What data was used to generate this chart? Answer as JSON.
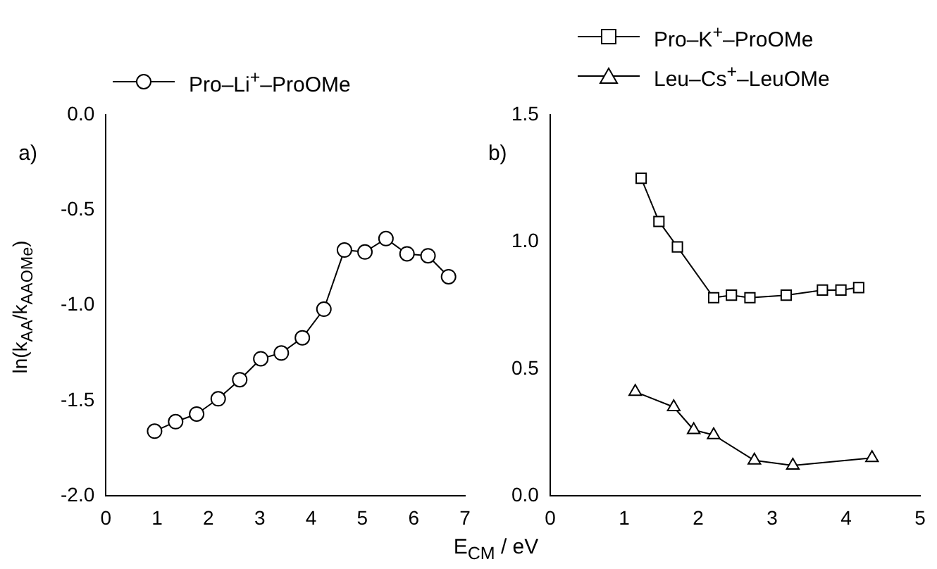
{
  "chart_data": [
    {
      "type": "line",
      "ylabel": "ln(k$_{AA}$/k$_{AAOMe}$)",
      "xlabel": "E$_{CM}$  /  eV",
      "annotations": [
        "a)"
      ],
      "xlim": [
        0,
        7
      ],
      "xticks": [
        0,
        1,
        2,
        3,
        4,
        5,
        6,
        7
      ],
      "ylim": [
        -2,
        0
      ],
      "yticks": [
        {
          "value": -2,
          "label": "-2.0"
        },
        {
          "value": -1.5,
          "label": "-1.5"
        },
        {
          "value": -1,
          "label": "-1.0"
        },
        {
          "value": -0.5,
          "label": "-0.5"
        },
        {
          "value": 0,
          "label": "0.0"
        }
      ],
      "legend": "top",
      "grid": false,
      "line_style": "solid",
      "series": [
        {
          "name": "Pro–Li$^{+}$–ProOMe",
          "color": "#000000",
          "marker": "circle",
          "x": [
            0.95,
            1.36,
            1.77,
            2.19,
            2.61,
            3.02,
            3.42,
            3.83,
            4.25,
            4.65,
            5.05,
            5.46,
            5.87,
            6.28,
            6.68
          ],
          "values": [
            -1.66,
            -1.61,
            -1.57,
            -1.49,
            -1.39,
            -1.28,
            -1.25,
            -1.17,
            -1.02,
            -0.71,
            -0.72,
            -0.65,
            -0.73,
            -0.74,
            -0.85
          ]
        }
      ]
    },
    {
      "type": "line",
      "annotations": [
        "b)"
      ],
      "xlim": [
        0,
        5
      ],
      "xticks": [
        0,
        1,
        2,
        3,
        4,
        5
      ],
      "ylim": [
        0,
        1.5
      ],
      "yticks": [
        {
          "value": 0,
          "label": "0.0"
        },
        {
          "value": 0.5,
          "label": "0.5"
        },
        {
          "value": 1,
          "label": "1.0"
        },
        {
          "value": 1.5,
          "label": "1.5"
        }
      ],
      "legend": "top",
      "grid": false,
      "line_style": "solid",
      "series": [
        {
          "name": "Pro–K$^{+}$–ProOMe",
          "color": "#000000",
          "marker": "square",
          "x": [
            1.23,
            1.47,
            1.72,
            2.21,
            2.45,
            2.7,
            3.19,
            3.68,
            3.93,
            4.17
          ],
          "values": [
            1.25,
            1.08,
            0.98,
            0.78,
            0.79,
            0.78,
            0.79,
            0.81,
            0.81,
            0.82
          ]
        },
        {
          "name": "Leu–Cs$^{+}$–LeuOMe",
          "color": "#000000",
          "marker": "triangle",
          "x": [
            1.15,
            1.67,
            1.94,
            2.21,
            2.76,
            3.28,
            4.35
          ],
          "values": [
            0.41,
            0.35,
            0.26,
            0.24,
            0.14,
            0.12,
            0.15
          ]
        }
      ]
    }
  ]
}
